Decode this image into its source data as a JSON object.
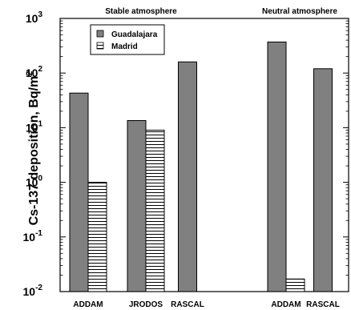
{
  "chart_data": {
    "type": "bar",
    "ylabel": "Cs-137 deposition, Bq/m",
    "ylabel_exponent": "2",
    "yscale": "log",
    "ylim": [
      0.01,
      1000
    ],
    "y_ticks": [
      {
        "base": "10",
        "exp": "3"
      },
      {
        "base": "10",
        "exp": "2"
      },
      {
        "base": "10",
        "exp": "1"
      },
      {
        "base": "10",
        "exp": "0"
      },
      {
        "base": "10",
        "exp": "-1"
      },
      {
        "base": "10",
        "exp": "-2"
      }
    ],
    "panels": [
      "Stable atmosphere",
      "Neutral atmosphere"
    ],
    "categories": [
      "ADDAM",
      "JRODOS",
      "RASCAL",
      "ADDAM",
      "RASCAL"
    ],
    "category_panels": [
      0,
      0,
      0,
      1,
      1
    ],
    "series": [
      {
        "name": "Guadalajara",
        "color": "#808080",
        "pattern": "solid",
        "values": [
          43,
          13.5,
          160,
          370,
          120
        ]
      },
      {
        "name": "Madrid",
        "color": "#ffffff",
        "pattern": "horizontal-lines",
        "values": [
          1.0,
          9.0,
          null,
          0.017,
          null
        ]
      }
    ],
    "legend": "top-left",
    "grid": false
  }
}
